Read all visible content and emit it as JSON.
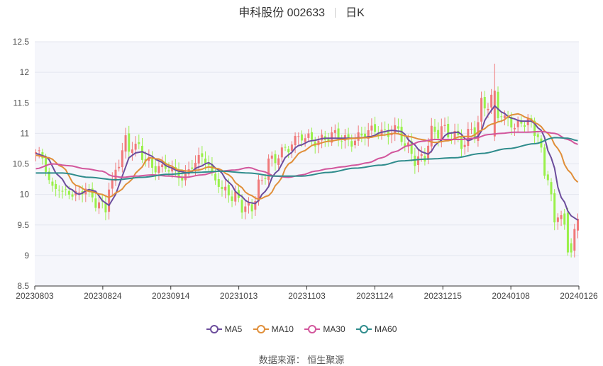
{
  "header": {
    "stock": "申科股份 002633",
    "period": "日K"
  },
  "source": "数据来源：  恒生聚源",
  "colors": {
    "up": "#f0797a",
    "down": "#99f04a",
    "ma5": "#6c4d9c",
    "ma10": "#e08f3a",
    "ma30": "#d2569c",
    "ma60": "#2f8c8c",
    "grid": "#e3e6ef",
    "plot_bg": "#f5f6fb"
  },
  "chart_data": {
    "type": "candlestick",
    "ylim": [
      8.5,
      12.5
    ],
    "yticks": [
      "8.5",
      "9",
      "9.5",
      "10",
      "10.5",
      "11",
      "11.5",
      "12",
      "12.5"
    ],
    "xticks": [
      "20230803",
      "20230824",
      "20230914",
      "20231013",
      "20231103",
      "20231124",
      "20231215",
      "20240108",
      "20240126"
    ],
    "series": [
      {
        "name": "MA5",
        "anchors": [
          [
            0,
            10.67
          ],
          [
            3,
            10.62
          ],
          [
            7,
            10.3
          ],
          [
            10,
            10.1
          ],
          [
            13,
            10.0
          ],
          [
            16,
            10.08
          ],
          [
            18,
            10.05
          ],
          [
            20,
            9.9
          ],
          [
            22,
            9.82
          ],
          [
            24,
            10.0
          ],
          [
            26,
            10.3
          ],
          [
            28,
            10.6
          ],
          [
            30,
            10.68
          ],
          [
            32,
            10.7
          ],
          [
            34,
            10.65
          ],
          [
            37,
            10.55
          ],
          [
            40,
            10.45
          ],
          [
            43,
            10.38
          ],
          [
            46,
            10.35
          ],
          [
            49,
            10.45
          ],
          [
            52,
            10.52
          ],
          [
            55,
            10.4
          ],
          [
            58,
            10.2
          ],
          [
            61,
            10.0
          ],
          [
            64,
            9.87
          ],
          [
            66,
            9.85
          ],
          [
            69,
            10.05
          ],
          [
            72,
            10.35
          ],
          [
            76,
            10.65
          ],
          [
            79,
            10.8
          ],
          [
            83,
            10.88
          ],
          [
            87,
            10.92
          ],
          [
            91,
            10.92
          ],
          [
            95,
            10.92
          ],
          [
            98,
            10.93
          ],
          [
            101,
            10.95
          ],
          [
            104,
            11.02
          ],
          [
            107,
            11.05
          ],
          [
            110,
            11.03
          ],
          [
            113,
            10.85
          ],
          [
            116,
            10.7
          ],
          [
            118,
            10.66
          ],
          [
            121,
            10.85
          ],
          [
            124,
            11.0
          ],
          [
            127,
            11.02
          ],
          [
            130,
            10.88
          ],
          [
            133,
            10.95
          ],
          [
            136,
            11.3
          ],
          [
            138,
            11.45
          ],
          [
            140,
            11.35
          ],
          [
            143,
            11.25
          ],
          [
            146,
            11.2
          ],
          [
            149,
            11.2
          ],
          [
            152,
            11.05
          ],
          [
            155,
            10.6
          ],
          [
            158,
            9.95
          ],
          [
            161,
            9.65
          ],
          [
            163,
            9.58
          ]
        ]
      },
      {
        "name": "MA10",
        "anchors": [
          [
            0,
            10.64
          ],
          [
            4,
            10.6
          ],
          [
            8,
            10.45
          ],
          [
            12,
            10.15
          ],
          [
            16,
            10.05
          ],
          [
            20,
            10.0
          ],
          [
            22,
            9.95
          ],
          [
            25,
            10.05
          ],
          [
            28,
            10.2
          ],
          [
            31,
            10.4
          ],
          [
            34,
            10.6
          ],
          [
            37,
            10.58
          ],
          [
            40,
            10.48
          ],
          [
            43,
            10.4
          ],
          [
            46,
            10.38
          ],
          [
            49,
            10.4
          ],
          [
            52,
            10.45
          ],
          [
            55,
            10.42
          ],
          [
            58,
            10.32
          ],
          [
            61,
            10.15
          ],
          [
            64,
            10.0
          ],
          [
            67,
            9.92
          ],
          [
            70,
            9.98
          ],
          [
            73,
            10.2
          ],
          [
            76,
            10.5
          ],
          [
            80,
            10.7
          ],
          [
            84,
            10.82
          ],
          [
            88,
            10.87
          ],
          [
            92,
            10.9
          ],
          [
            96,
            10.92
          ],
          [
            100,
            10.93
          ],
          [
            104,
            10.97
          ],
          [
            108,
            11.0
          ],
          [
            112,
            10.95
          ],
          [
            116,
            10.9
          ],
          [
            120,
            10.85
          ],
          [
            124,
            10.88
          ],
          [
            128,
            10.95
          ],
          [
            131,
            10.95
          ],
          [
            134,
            11.05
          ],
          [
            137,
            11.15
          ],
          [
            140,
            11.2
          ],
          [
            143,
            11.3
          ],
          [
            145,
            11.32
          ],
          [
            148,
            11.25
          ],
          [
            151,
            11.15
          ],
          [
            154,
            11.0
          ],
          [
            157,
            10.75
          ],
          [
            160,
            10.4
          ],
          [
            163,
            10.2
          ]
        ]
      },
      {
        "name": "MA30",
        "anchors": [
          [
            0,
            10.42
          ],
          [
            5,
            10.5
          ],
          [
            10,
            10.47
          ],
          [
            15,
            10.42
          ],
          [
            20,
            10.38
          ],
          [
            23,
            10.3
          ],
          [
            26,
            10.28
          ],
          [
            30,
            10.3
          ],
          [
            35,
            10.32
          ],
          [
            40,
            10.3
          ],
          [
            45,
            10.28
          ],
          [
            50,
            10.32
          ],
          [
            55,
            10.38
          ],
          [
            60,
            10.4
          ],
          [
            64,
            10.44
          ],
          [
            68,
            10.38
          ],
          [
            72,
            10.3
          ],
          [
            76,
            10.28
          ],
          [
            80,
            10.32
          ],
          [
            84,
            10.38
          ],
          [
            88,
            10.42
          ],
          [
            92,
            10.45
          ],
          [
            96,
            10.48
          ],
          [
            100,
            10.52
          ],
          [
            104,
            10.6
          ],
          [
            108,
            10.7
          ],
          [
            112,
            10.8
          ],
          [
            116,
            10.87
          ],
          [
            120,
            10.9
          ],
          [
            124,
            10.9
          ],
          [
            128,
            10.9
          ],
          [
            132,
            10.92
          ],
          [
            136,
            10.98
          ],
          [
            140,
            11.0
          ],
          [
            144,
            11.02
          ],
          [
            148,
            11.02
          ],
          [
            152,
            11.03
          ],
          [
            156,
            11.0
          ],
          [
            160,
            10.9
          ],
          [
            163,
            10.82
          ]
        ]
      },
      {
        "name": "MA60",
        "anchors": [
          [
            0,
            10.35
          ],
          [
            8,
            10.35
          ],
          [
            16,
            10.28
          ],
          [
            24,
            10.24
          ],
          [
            32,
            10.28
          ],
          [
            40,
            10.33
          ],
          [
            48,
            10.36
          ],
          [
            56,
            10.38
          ],
          [
            64,
            10.35
          ],
          [
            72,
            10.3
          ],
          [
            80,
            10.3
          ],
          [
            88,
            10.36
          ],
          [
            96,
            10.43
          ],
          [
            104,
            10.48
          ],
          [
            110,
            10.55
          ],
          [
            118,
            10.58
          ],
          [
            126,
            10.6
          ],
          [
            134,
            10.67
          ],
          [
            142,
            10.75
          ],
          [
            150,
            10.83
          ],
          [
            156,
            10.93
          ],
          [
            160,
            10.92
          ],
          [
            163,
            10.88
          ]
        ]
      }
    ]
  }
}
